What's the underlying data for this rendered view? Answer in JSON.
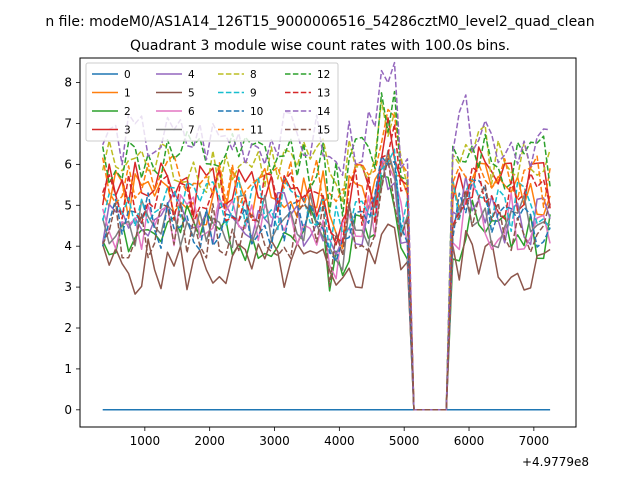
{
  "chart_data": {
    "type": "line",
    "suptitle": "n file: modeM0/AS1A14_126T15_9000006516_54286cztM0_level2_quad_clean",
    "title": "Quadrant 3 module wise count rates with 100.0s bins.",
    "xlabel": "",
    "ylabel": "",
    "x_offset_label": "+4.9779e8",
    "xlim": [
      0,
      7650
    ],
    "ylim": [
      -0.42,
      8.6
    ],
    "xticks": [
      1000,
      2000,
      3000,
      4000,
      5000,
      6000,
      7000
    ],
    "yticks": [
      0,
      1,
      2,
      3,
      4,
      5,
      6,
      7,
      8
    ],
    "legend_position": "upper-left",
    "gap_x": [
      5000,
      5100,
      5700
    ],
    "x_start": 350,
    "x_step": 100,
    "series": [
      {
        "name": "0",
        "color": "#1f77b4",
        "style": "solid",
        "flat": 0
      },
      {
        "name": "1",
        "color": "#ff7f0e",
        "style": "solid",
        "base": 5.2,
        "seed": 1
      },
      {
        "name": "2",
        "color": "#2ca02c",
        "style": "solid",
        "base": 4.3,
        "seed": 2
      },
      {
        "name": "3",
        "color": "#d62728",
        "style": "solid",
        "base": 5.4,
        "seed": 3
      },
      {
        "name": "4",
        "color": "#9467bd",
        "style": "solid",
        "base": 4.7,
        "seed": 4
      },
      {
        "name": "5",
        "color": "#8c564b",
        "style": "solid",
        "base": 3.5,
        "seed": 5
      },
      {
        "name": "6",
        "color": "#e377c2",
        "style": "solid",
        "base": 4.6,
        "seed": 6
      },
      {
        "name": "7",
        "color": "#7f7f7f",
        "style": "solid",
        "base": 4.6,
        "seed": 7
      },
      {
        "name": "8",
        "color": "#bcbd22",
        "style": "dashed",
        "base": 6.0,
        "seed": 8
      },
      {
        "name": "9",
        "color": "#17becf",
        "style": "dashed",
        "base": 5.0,
        "seed": 9
      },
      {
        "name": "10",
        "color": "#1f77b4",
        "style": "dashed",
        "base": 4.6,
        "seed": 10
      },
      {
        "name": "11",
        "color": "#ff7f0e",
        "style": "dashed",
        "base": 5.6,
        "seed": 11
      },
      {
        "name": "12",
        "color": "#2ca02c",
        "style": "dashed",
        "base": 6.1,
        "seed": 12
      },
      {
        "name": "13",
        "color": "#d62728",
        "style": "dashed",
        "base": 5.2,
        "seed": 13
      },
      {
        "name": "14",
        "color": "#9467bd",
        "style": "dashed",
        "base": 6.6,
        "seed": 14
      },
      {
        "name": "15",
        "color": "#8c564b",
        "style": "dashed",
        "base": 4.4,
        "seed": 15
      }
    ]
  }
}
